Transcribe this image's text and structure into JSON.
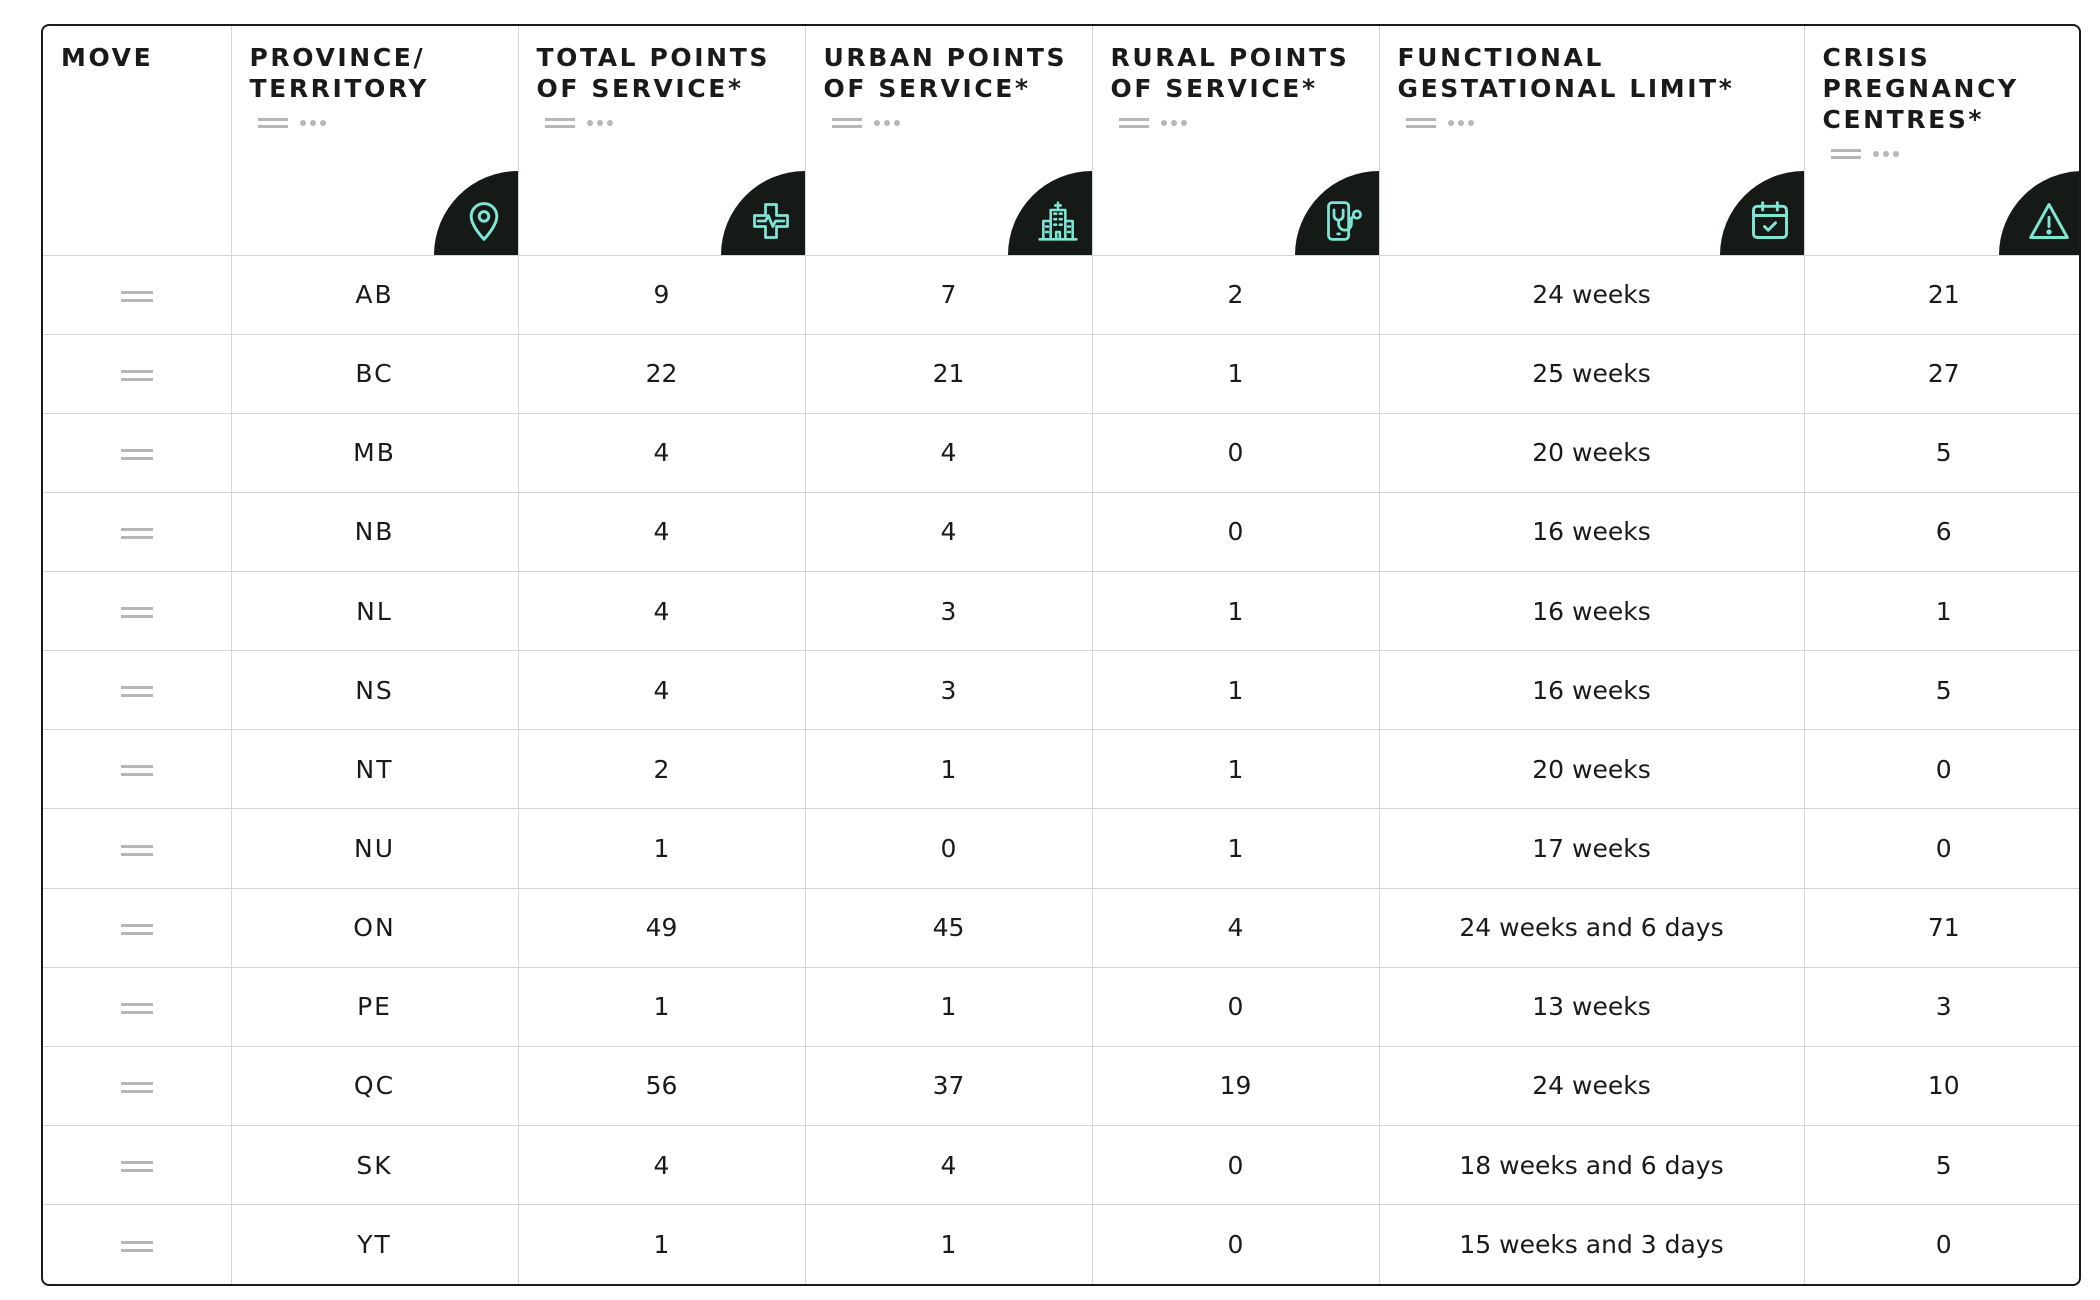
{
  "columns": [
    {
      "label": "MOVE"
    },
    {
      "label": "PROVINCE/\nTERRITORY",
      "icon": "map-pin-icon"
    },
    {
      "label": "TOTAL POINTS\nOF SERVICE*",
      "icon": "medical-cross-pulse-icon"
    },
    {
      "label": "URBAN POINTS\nOF SERVICE*",
      "icon": "hospital-building-icon"
    },
    {
      "label": "RURAL POINTS\nOF SERVICE*",
      "icon": "phone-stethoscope-icon"
    },
    {
      "label": "FUNCTIONAL\nGESTATIONAL LIMIT*",
      "icon": "calendar-check-icon"
    },
    {
      "label": "CRISIS\nPREGNANCY\nCENTRES*",
      "icon": "warning-triangle-icon"
    }
  ],
  "rows": [
    {
      "province": "AB",
      "total": "9",
      "urban": "7",
      "rural": "2",
      "limit": "24 weeks",
      "crisis": "21"
    },
    {
      "province": "BC",
      "total": "22",
      "urban": "21",
      "rural": "1",
      "limit": "25 weeks",
      "crisis": "27"
    },
    {
      "province": "MB",
      "total": "4",
      "urban": "4",
      "rural": "0",
      "limit": "20 weeks",
      "crisis": "5"
    },
    {
      "province": "NB",
      "total": "4",
      "urban": "4",
      "rural": "0",
      "limit": "16 weeks",
      "crisis": "6"
    },
    {
      "province": "NL",
      "total": "4",
      "urban": "3",
      "rural": "1",
      "limit": "16 weeks",
      "crisis": "1"
    },
    {
      "province": "NS",
      "total": "4",
      "urban": "3",
      "rural": "1",
      "limit": "16 weeks",
      "crisis": "5"
    },
    {
      "province": "NT",
      "total": "2",
      "urban": "1",
      "rural": "1",
      "limit": "20 weeks",
      "crisis": "0"
    },
    {
      "province": "NU",
      "total": "1",
      "urban": "0",
      "rural": "1",
      "limit": "17 weeks",
      "crisis": "0"
    },
    {
      "province": "ON",
      "total": "49",
      "urban": "45",
      "rural": "4",
      "limit": "24 weeks and 6 days",
      "crisis": "71"
    },
    {
      "province": "PE",
      "total": "1",
      "urban": "1",
      "rural": "0",
      "limit": "13 weeks",
      "crisis": "3"
    },
    {
      "province": "QC",
      "total": "56",
      "urban": "37",
      "rural": "19",
      "limit": "24 weeks",
      "crisis": "10"
    },
    {
      "province": "SK",
      "total": "4",
      "urban": "4",
      "rural": "0",
      "limit": "18 weeks and 6 days",
      "crisis": "5"
    },
    {
      "province": "YT",
      "total": "1",
      "urban": "1",
      "rural": "0",
      "limit": "15 weeks and 3 days",
      "crisis": "0"
    }
  ],
  "colors": {
    "border": "#1a1a1a",
    "icon_badge": "#161a16",
    "icon_stroke": "#7fe6d6",
    "grid": "#d4d4d4",
    "grip": "#b7b7b7"
  }
}
